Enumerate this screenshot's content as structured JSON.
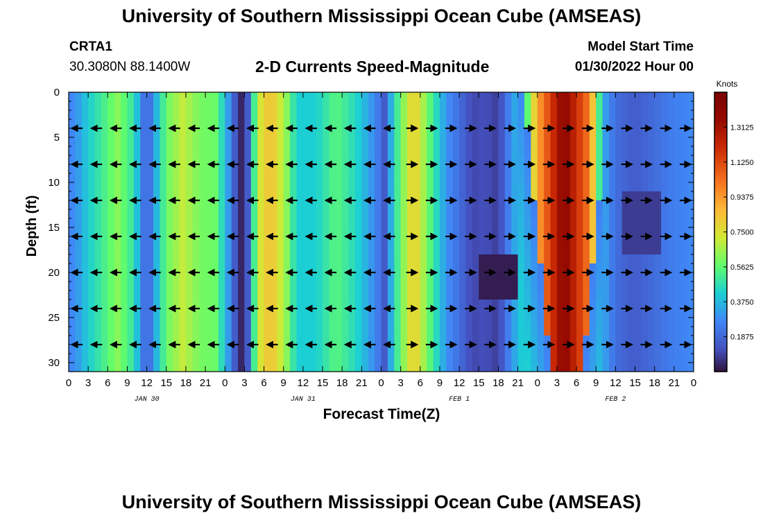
{
  "header": {
    "title": "University of Southern Mississippi Ocean Cube (AMSEAS)",
    "station_id": "CRTA1",
    "station_coords": "30.3080N  88.1400W",
    "plot_title": "2-D Currents Speed-Magnitude",
    "model_start_label": "Model Start Time",
    "model_start_value": "01/30/2022 Hour 00"
  },
  "footer": {
    "title": "University of Southern Mississippi Ocean Cube (AMSEAS)"
  },
  "chart_data": {
    "type": "heatmap",
    "title": "2-D Currents Speed-Magnitude",
    "xlabel": "Forecast Time(Z)",
    "ylabel": "Depth (ft)",
    "x_ticks": [
      "0",
      "3",
      "6",
      "9",
      "12",
      "15",
      "18",
      "21",
      "0",
      "3",
      "6",
      "9",
      "12",
      "15",
      "18",
      "21",
      "0",
      "3",
      "6",
      "9",
      "12",
      "15",
      "18",
      "21",
      "0",
      "3",
      "6",
      "9",
      "12",
      "15",
      "18",
      "21",
      "0"
    ],
    "x_range_hours": [
      0,
      96
    ],
    "date_labels": [
      {
        "label": "JAN 30",
        "hour": 12
      },
      {
        "label": "JAN 31",
        "hour": 36
      },
      {
        "label": "FEB 1",
        "hour": 60
      },
      {
        "label": "FEB 2",
        "hour": 84
      }
    ],
    "y_ticks": [
      0,
      5,
      10,
      15,
      20,
      25,
      30
    ],
    "ylim": [
      0,
      31
    ],
    "colorbar": {
      "label": "Knots",
      "ticks": [
        "1.3125",
        "1.1250",
        "0.9375",
        "0.7500",
        "0.5625",
        "0.3750",
        "0.1875"
      ],
      "range": [
        0,
        1.5
      ]
    },
    "arrow_depths_ft": [
      4,
      8,
      12,
      16,
      20,
      24,
      28
    ],
    "time_profile_knots": [
      {
        "hour": 0,
        "v": 0.25
      },
      {
        "hour": 1.5,
        "v": 0.32
      },
      {
        "hour": 3,
        "v": 0.42
      },
      {
        "hour": 5,
        "v": 0.5
      },
      {
        "hour": 7.5,
        "v": 0.62
      },
      {
        "hour": 10,
        "v": 0.48
      },
      {
        "hour": 11,
        "v": 0.3
      },
      {
        "hour": 12,
        "v": 0.14
      },
      {
        "hour": 13,
        "v": 0.3
      },
      {
        "hour": 15,
        "v": 0.58
      },
      {
        "hour": 17.5,
        "v": 0.7
      },
      {
        "hour": 20,
        "v": 0.6
      },
      {
        "hour": 22.5,
        "v": 0.58
      },
      {
        "hour": 24,
        "v": 0.4
      },
      {
        "hour": 25.5,
        "v": 0.15
      },
      {
        "hour": 26.5,
        "v": 0.04
      },
      {
        "hour": 27.5,
        "v": 0.15
      },
      {
        "hour": 29,
        "v": 0.7
      },
      {
        "hour": 31,
        "v": 0.85
      },
      {
        "hour": 33.5,
        "v": 0.62
      },
      {
        "hour": 35,
        "v": 0.42
      },
      {
        "hour": 38,
        "v": 0.42
      },
      {
        "hour": 41,
        "v": 0.55
      },
      {
        "hour": 44,
        "v": 0.45
      },
      {
        "hour": 47,
        "v": 0.28
      },
      {
        "hour": 48.5,
        "v": 0.15
      },
      {
        "hour": 50,
        "v": 0.45
      },
      {
        "hour": 53,
        "v": 0.82
      },
      {
        "hour": 56,
        "v": 0.5
      },
      {
        "hour": 58,
        "v": 0.3
      },
      {
        "hour": 60,
        "v": 0.2
      },
      {
        "hour": 62,
        "v": 0.1
      },
      {
        "hour": 64,
        "v": 0.12
      },
      {
        "hour": 66,
        "v": 0.08
      },
      {
        "hour": 68,
        "v": 0.3
      },
      {
        "hour": 70,
        "v": 0.45
      },
      {
        "hour": 72,
        "v": 0.9
      },
      {
        "hour": 76,
        "v": 1.4
      },
      {
        "hour": 80,
        "v": 1.0
      },
      {
        "hour": 82,
        "v": 0.35
      },
      {
        "hour": 84,
        "v": 0.2
      },
      {
        "hour": 87,
        "v": 0.15
      },
      {
        "hour": 90,
        "v": 0.2
      },
      {
        "hour": 93,
        "v": 0.25
      },
      {
        "hour": 96,
        "v": 0.28
      }
    ]
  }
}
